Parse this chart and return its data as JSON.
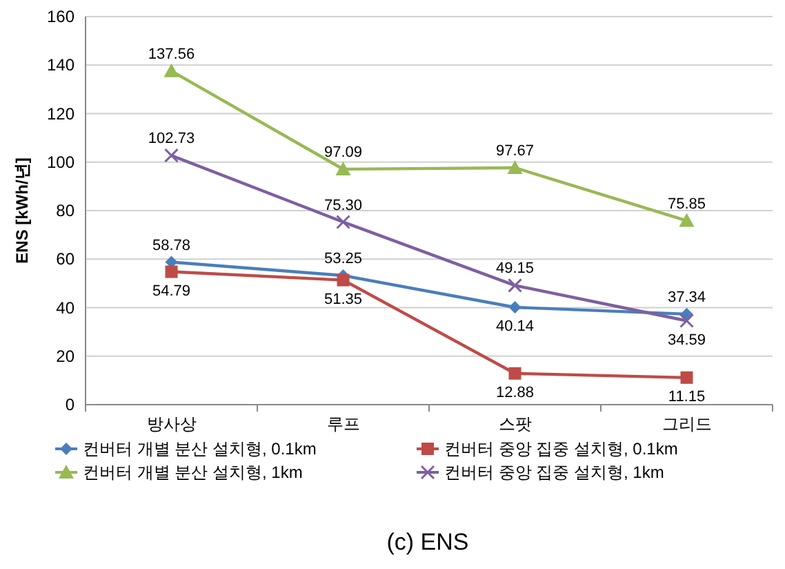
{
  "chart_data": {
    "type": "line",
    "ylabel": "ENS [kWh/년]",
    "categories": [
      "방사상",
      "루프",
      "스팟",
      "그리드"
    ],
    "ylim": [
      0,
      160
    ],
    "yticks": [
      0,
      20,
      40,
      60,
      80,
      100,
      120,
      140,
      160
    ],
    "grid": "y",
    "legend": "bottom",
    "line_style": "solid",
    "series": [
      {
        "name": "컨버터 개별 분산 설치형, 0.1km",
        "color": "#4a7ebb",
        "marker": "diamond",
        "values": [
          58.78,
          53.25,
          40.14,
          37.34
        ],
        "value_labels": [
          "58.78",
          "53.25",
          "40.14",
          "37.34"
        ]
      },
      {
        "name": "컨버터 중앙 집중 설치형, 0.1km",
        "color": "#be4b48",
        "marker": "square",
        "values": [
          54.79,
          51.35,
          12.88,
          11.15
        ],
        "value_labels": [
          "54.79",
          "51.35",
          "12.88",
          "11.15"
        ]
      },
      {
        "name": "컨버터 개별 분산 설치형, 1km",
        "color": "#98b954",
        "marker": "triangle",
        "values": [
          137.56,
          97.09,
          97.67,
          75.85
        ],
        "value_labels": [
          "137.56",
          "97.09",
          "97.67",
          "75.85"
        ]
      },
      {
        "name": "컨버터 중앙 집중 설치형, 1km",
        "color": "#7d60a0",
        "marker": "cross",
        "values": [
          102.73,
          75.3,
          49.15,
          34.59
        ],
        "value_labels": [
          "102.73",
          "75.30",
          "49.15",
          "34.59"
        ]
      }
    ],
    "annotations": [
      "(c)  ENS"
    ]
  }
}
